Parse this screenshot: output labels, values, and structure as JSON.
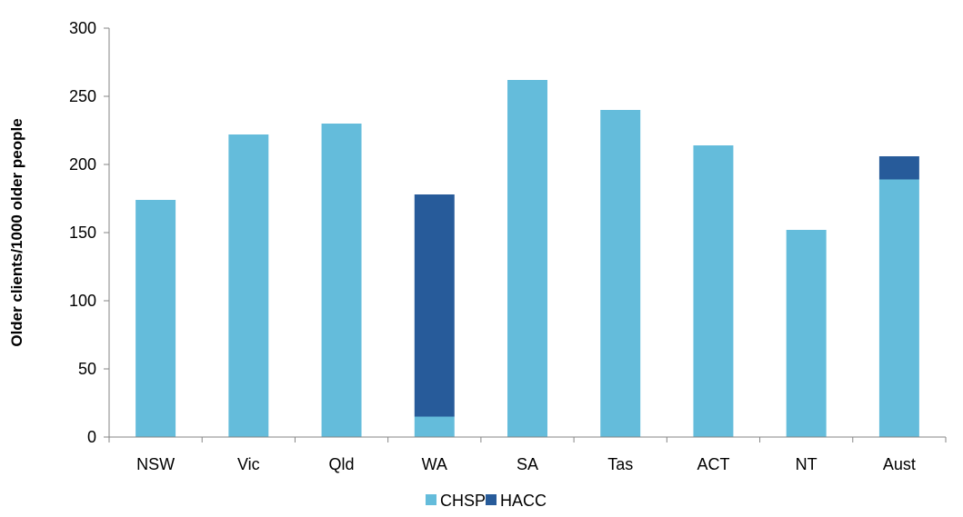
{
  "chart_data": {
    "type": "bar",
    "stacked": true,
    "title": "",
    "xlabel": "",
    "ylabel": "Older clients/1000 older people",
    "ylim": [
      0,
      300
    ],
    "yticks": [
      0,
      50,
      100,
      150,
      200,
      250,
      300
    ],
    "grid": false,
    "legend_position": "bottom",
    "categories": [
      "NSW",
      "Vic",
      "Qld",
      "WA",
      "SA",
      "Tas",
      "ACT",
      "NT",
      "Aust"
    ],
    "series": [
      {
        "name": "CHSP",
        "color": "#64BCDB",
        "values": [
          174,
          222,
          230,
          15,
          262,
          240,
          214,
          152,
          189
        ]
      },
      {
        "name": "HACC",
        "color": "#275B9A",
        "values": [
          0,
          0,
          0,
          163,
          0,
          0,
          0,
          0,
          17
        ]
      }
    ]
  }
}
